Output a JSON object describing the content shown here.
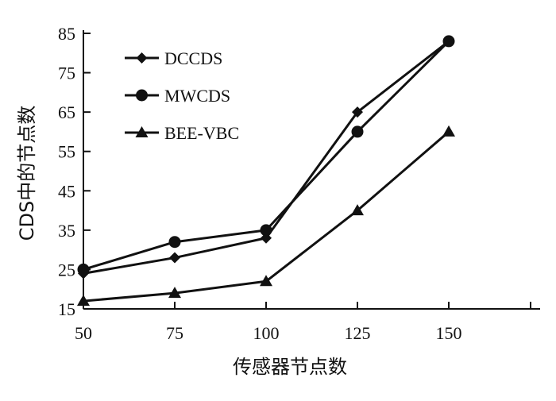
{
  "chart_data": {
    "type": "line",
    "title": "",
    "xlabel": "传感器节点数",
    "ylabel": "CDS中的节点数",
    "x": [
      50,
      75,
      100,
      125,
      150
    ],
    "xlim": [
      50,
      175
    ],
    "ylim": [
      15,
      85
    ],
    "xticks": [
      "50",
      "75",
      "100",
      "125",
      "150"
    ],
    "yticks": [
      "15",
      "25",
      "35",
      "45",
      "55",
      "65",
      "75",
      "85"
    ],
    "grid": false,
    "legend_position": "top-left",
    "series": [
      {
        "name": "DCCDS",
        "marker": "diamond",
        "values": [
          24,
          28,
          33,
          65,
          83
        ]
      },
      {
        "name": "MWCDS",
        "marker": "circle",
        "values": [
          25,
          32,
          35,
          60,
          83
        ]
      },
      {
        "name": "BEE-VBC",
        "marker": "triangle",
        "values": [
          17,
          19,
          22,
          40,
          60
        ]
      }
    ],
    "line_color": "#111111"
  }
}
